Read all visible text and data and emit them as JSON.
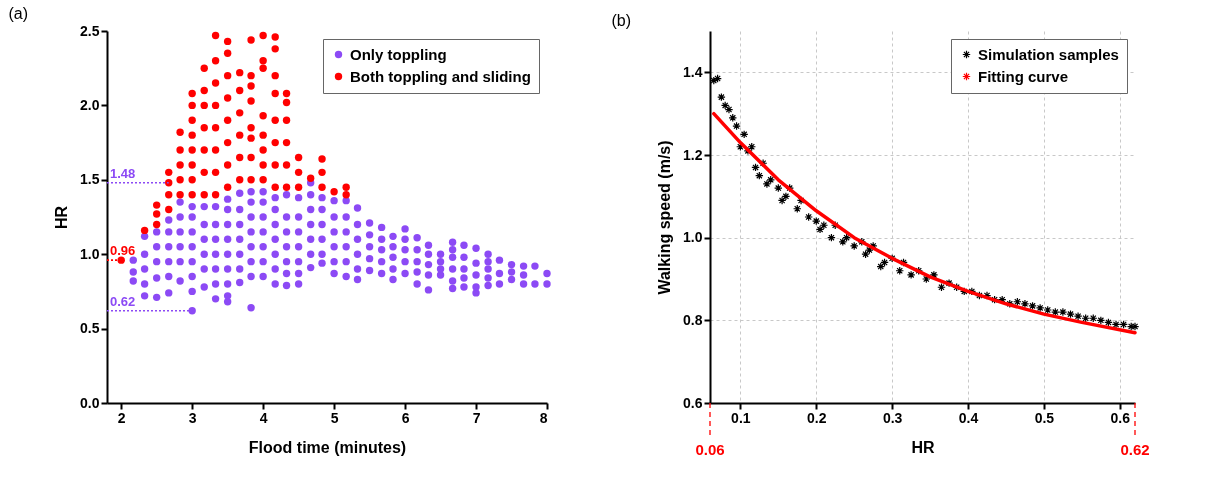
{
  "chart_data": [
    {
      "type": "scatter",
      "title": "(a)",
      "xlabel": "Flood time (minutes)",
      "ylabel": "HR",
      "xlim": [
        1.8,
        8
      ],
      "xticks": [
        2,
        3,
        4,
        5,
        6,
        7,
        8
      ],
      "ylim": [
        0,
        2.5
      ],
      "yticks": [
        {
          "value": 0,
          "label": "0.0"
        },
        {
          "value": 0.5,
          "label": "0.5"
        },
        {
          "value": 1,
          "label": "1.0"
        },
        {
          "value": 1.5,
          "label": "1.5"
        },
        {
          "value": 2,
          "label": "2.0"
        },
        {
          "value": 2.5,
          "label": "2.5"
        }
      ],
      "marker": "circle",
      "legend": "top right",
      "series": [
        {
          "name": "Only toppling",
          "color": "#8c4af5",
          "x": [
            2.17,
            2.17,
            2.17,
            2.33,
            2.33,
            2.33,
            2.33,
            2.33,
            2.5,
            2.5,
            2.5,
            2.5,
            2.5,
            2.67,
            2.67,
            2.67,
            2.67,
            2.67,
            2.67,
            2.83,
            2.83,
            2.83,
            2.83,
            2.83,
            2.83,
            3.0,
            3.0,
            3.0,
            3.0,
            3.0,
            3.0,
            3.0,
            3.0,
            3.17,
            3.17,
            3.17,
            3.17,
            3.17,
            3.17,
            3.33,
            3.33,
            3.33,
            3.33,
            3.33,
            3.33,
            3.33,
            3.5,
            3.5,
            3.5,
            3.5,
            3.5,
            3.5,
            3.5,
            3.5,
            3.5,
            3.67,
            3.67,
            3.67,
            3.67,
            3.67,
            3.67,
            3.67,
            3.83,
            3.83,
            3.83,
            3.83,
            3.83,
            3.83,
            3.83,
            3.83,
            4.0,
            4.0,
            4.0,
            4.0,
            4.0,
            4.0,
            4.0,
            4.17,
            4.17,
            4.17,
            4.17,
            4.17,
            4.17,
            4.17,
            4.33,
            4.33,
            4.33,
            4.33,
            4.33,
            4.33,
            4.33,
            4.5,
            4.5,
            4.5,
            4.5,
            4.5,
            4.5,
            4.5,
            4.67,
            4.67,
            4.67,
            4.67,
            4.67,
            4.67,
            4.67,
            4.83,
            4.83,
            4.83,
            4.83,
            4.83,
            4.83,
            5.0,
            5.0,
            5.0,
            5.0,
            5.0,
            5.0,
            5.17,
            5.17,
            5.17,
            5.17,
            5.17,
            5.17,
            5.33,
            5.33,
            5.33,
            5.33,
            5.33,
            5.33,
            5.5,
            5.5,
            5.5,
            5.5,
            5.5,
            5.67,
            5.67,
            5.67,
            5.67,
            5.67,
            5.83,
            5.83,
            5.83,
            5.83,
            5.83,
            6.0,
            6.0,
            6.0,
            6.0,
            6.0,
            6.17,
            6.17,
            6.17,
            6.17,
            6.17,
            6.33,
            6.33,
            6.33,
            6.33,
            6.33,
            6.5,
            6.5,
            6.5,
            6.5,
            6.67,
            6.67,
            6.67,
            6.67,
            6.67,
            6.67,
            6.83,
            6.83,
            6.83,
            6.83,
            6.83,
            7.0,
            7.0,
            7.0,
            7.0,
            7.0,
            7.17,
            7.17,
            7.17,
            7.17,
            7.17,
            7.33,
            7.33,
            7.33,
            7.5,
            7.5,
            7.5,
            7.67,
            7.67,
            7.67,
            7.83,
            7.83,
            8.0,
            8.0
          ],
          "values": [
            0.82,
            0.88,
            0.96,
            0.72,
            0.8,
            0.9,
            1.0,
            1.12,
            0.71,
            0.84,
            0.95,
            1.05,
            1.15,
            0.74,
            0.85,
            0.95,
            1.05,
            1.15,
            1.23,
            0.82,
            0.95,
            1.05,
            1.15,
            1.25,
            1.35,
            0.62,
            0.75,
            0.85,
            0.95,
            1.05,
            1.15,
            1.25,
            1.32,
            0.78,
            0.9,
            1.0,
            1.1,
            1.2,
            1.32,
            0.7,
            0.8,
            0.9,
            1.0,
            1.1,
            1.2,
            1.32,
            0.68,
            0.72,
            0.8,
            0.9,
            1.0,
            1.1,
            1.2,
            1.3,
            1.37,
            0.81,
            0.9,
            1.0,
            1.1,
            1.2,
            1.3,
            1.41,
            0.64,
            0.85,
            0.95,
            1.05,
            1.15,
            1.25,
            1.35,
            1.42,
            0.85,
            0.95,
            1.05,
            1.15,
            1.25,
            1.35,
            1.42,
            0.8,
            0.9,
            1.0,
            1.1,
            1.2,
            1.3,
            1.38,
            0.79,
            0.87,
            0.95,
            1.05,
            1.15,
            1.25,
            1.4,
            0.8,
            0.87,
            0.95,
            1.05,
            1.15,
            1.25,
            1.38,
            0.91,
            1.0,
            1.1,
            1.2,
            1.3,
            1.4,
            1.48,
            0.94,
            1.0,
            1.1,
            1.2,
            1.3,
            1.38,
            0.87,
            0.95,
            1.05,
            1.15,
            1.25,
            1.36,
            0.85,
            0.95,
            1.05,
            1.15,
            1.25,
            1.36,
            0.83,
            0.9,
            1.0,
            1.1,
            1.2,
            1.31,
            0.89,
            0.97,
            1.05,
            1.13,
            1.21,
            0.87,
            0.95,
            1.03,
            1.1,
            1.18,
            0.83,
            0.9,
            0.98,
            1.05,
            1.12,
            0.87,
            0.95,
            1.03,
            1.1,
            1.17,
            0.8,
            0.88,
            0.95,
            1.03,
            1.11,
            0.76,
            0.86,
            0.93,
            1.0,
            1.06,
            0.86,
            0.9,
            0.95,
            1.0,
            0.77,
            0.82,
            0.9,
            0.98,
            1.03,
            1.08,
            0.78,
            0.84,
            0.9,
            0.98,
            1.06,
            0.74,
            0.78,
            0.86,
            0.94,
            1.04,
            0.79,
            0.84,
            0.9,
            0.95,
            1.0,
            0.8,
            0.87,
            0.96,
            0.83,
            0.88,
            0.93,
            0.8,
            0.86,
            0.92,
            0.8,
            0.92,
            0.8,
            0.87
          ]
        },
        {
          "name": "Both toppling and sliding",
          "color": "#ff0000",
          "x": [
            2.0,
            2.33,
            2.5,
            2.5,
            2.5,
            2.67,
            2.67,
            2.67,
            2.67,
            2.83,
            2.83,
            2.83,
            2.83,
            2.83,
            3.0,
            3.0,
            3.0,
            3.0,
            3.0,
            3.0,
            3.0,
            3.0,
            3.17,
            3.17,
            3.17,
            3.17,
            3.17,
            3.17,
            3.17,
            3.33,
            3.33,
            3.33,
            3.33,
            3.33,
            3.33,
            3.33,
            3.33,
            3.5,
            3.5,
            3.5,
            3.5,
            3.5,
            3.5,
            3.5,
            3.5,
            3.67,
            3.67,
            3.67,
            3.67,
            3.67,
            3.67,
            3.83,
            3.83,
            3.83,
            3.83,
            3.83,
            3.83,
            3.83,
            3.83,
            4.0,
            4.0,
            4.0,
            4.0,
            4.0,
            4.0,
            4.0,
            4.0,
            4.17,
            4.17,
            4.17,
            4.17,
            4.17,
            4.17,
            4.17,
            4.17,
            4.33,
            4.33,
            4.33,
            4.33,
            4.33,
            4.33,
            4.5,
            4.5,
            4.5,
            4.67,
            4.83,
            4.83,
            4.83,
            5.0,
            5.17,
            5.17
          ],
          "values": [
            0.96,
            1.16,
            1.2,
            1.27,
            1.33,
            1.3,
            1.4,
            1.48,
            1.55,
            1.4,
            1.5,
            1.6,
            1.7,
            1.82,
            1.4,
            1.5,
            1.6,
            1.7,
            1.8,
            1.9,
            2.0,
            2.08,
            1.4,
            1.55,
            1.7,
            1.85,
            2.0,
            2.1,
            2.25,
            1.4,
            1.55,
            1.7,
            1.85,
            2.0,
            2.15,
            2.3,
            2.47,
            1.45,
            1.6,
            1.75,
            1.9,
            2.05,
            2.2,
            2.35,
            2.43,
            1.5,
            1.65,
            1.8,
            1.95,
            2.1,
            2.22,
            1.5,
            1.65,
            1.78,
            1.85,
            2.03,
            2.13,
            2.2,
            2.44,
            1.5,
            1.6,
            1.7,
            1.8,
            1.93,
            2.25,
            2.3,
            2.47,
            1.45,
            1.6,
            1.75,
            1.9,
            2.08,
            2.2,
            2.38,
            2.46,
            1.45,
            1.6,
            1.75,
            1.9,
            2.02,
            2.08,
            1.45,
            1.55,
            1.65,
            1.51,
            1.45,
            1.55,
            1.64,
            1.42,
            1.4,
            1.45
          ]
        }
      ],
      "ref_lines": [
        {
          "axis": "y",
          "value": 1.48,
          "label": "1.48",
          "color": "#8c4af5",
          "line_style": "dotted"
        },
        {
          "axis": "y",
          "value": 0.96,
          "label": "0.96",
          "color": "#ff0000",
          "line_style": "dotted"
        },
        {
          "axis": "y",
          "value": 0.62,
          "label": "0.62",
          "color": "#8c4af5",
          "line_style": "dotted"
        }
      ]
    },
    {
      "type": "scatter",
      "title": "(b)",
      "xlabel": "HR",
      "ylabel": "Walking speed (m/s)",
      "xlim": [
        0.06,
        0.62
      ],
      "xticks": [
        0.1,
        0.2,
        0.3,
        0.4,
        0.5,
        0.6
      ],
      "ylim": [
        0.6,
        1.5
      ],
      "yticks": [
        {
          "value": 0.6,
          "label": "0.6"
        },
        {
          "value": 0.8,
          "label": "0.8"
        },
        {
          "value": 1,
          "label": "1.0"
        },
        {
          "value": 1.2,
          "label": "1.2"
        },
        {
          "value": 1.4,
          "label": "1.4"
        }
      ],
      "grid": true,
      "legend": "top right",
      "series": [
        {
          "name": "Simulation samples",
          "color": "#000000",
          "marker": "cross",
          "x": [
            0.065,
            0.07,
            0.075,
            0.08,
            0.085,
            0.09,
            0.095,
            0.1,
            0.105,
            0.11,
            0.115,
            0.12,
            0.125,
            0.13,
            0.135,
            0.14,
            0.15,
            0.155,
            0.16,
            0.165,
            0.175,
            0.18,
            0.19,
            0.2,
            0.205,
            0.21,
            0.22,
            0.225,
            0.235,
            0.24,
            0.25,
            0.26,
            0.265,
            0.27,
            0.275,
            0.285,
            0.29,
            0.3,
            0.31,
            0.315,
            0.325,
            0.335,
            0.345,
            0.355,
            0.365,
            0.375,
            0.385,
            0.395,
            0.405,
            0.415,
            0.425,
            0.435,
            0.445,
            0.455,
            0.465,
            0.475,
            0.485,
            0.495,
            0.505,
            0.515,
            0.525,
            0.535,
            0.545,
            0.555,
            0.565,
            0.575,
            0.585,
            0.595,
            0.605,
            0.615,
            0.62
          ],
          "values": [
            1.38,
            1.385,
            1.34,
            1.32,
            1.31,
            1.29,
            1.27,
            1.22,
            1.25,
            1.21,
            1.22,
            1.17,
            1.15,
            1.18,
            1.13,
            1.14,
            1.12,
            1.09,
            1.1,
            1.12,
            1.07,
            1.09,
            1.05,
            1.04,
            1.02,
            1.03,
            1.0,
            1.03,
            0.99,
            1.0,
            0.98,
            0.99,
            0.96,
            0.97,
            0.98,
            0.93,
            0.94,
            0.95,
            0.92,
            0.94,
            0.91,
            0.92,
            0.9,
            0.91,
            0.88,
            0.89,
            0.88,
            0.87,
            0.87,
            0.86,
            0.86,
            0.85,
            0.85,
            0.84,
            0.845,
            0.84,
            0.835,
            0.83,
            0.825,
            0.82,
            0.82,
            0.815,
            0.81,
            0.805,
            0.805,
            0.8,
            0.795,
            0.79,
            0.79,
            0.785,
            0.785
          ]
        },
        {
          "name": "Fitting curve",
          "type": "line",
          "color": "#ff0000",
          "marker": "none",
          "line_style": "solid",
          "x": [
            0.065,
            0.1,
            0.15,
            0.2,
            0.25,
            0.3,
            0.35,
            0.4,
            0.45,
            0.5,
            0.55,
            0.62
          ],
          "values": [
            1.3,
            1.23,
            1.14,
            1.065,
            1.0,
            0.95,
            0.905,
            0.87,
            0.84,
            0.815,
            0.795,
            0.77
          ]
        }
      ],
      "ref_lines": [
        {
          "axis": "x",
          "value": 0.06,
          "label": "0.06",
          "color": "#ff0000",
          "line_style": "dashed"
        },
        {
          "axis": "x",
          "value": 0.62,
          "label": "0.62",
          "color": "#ff0000",
          "line_style": "dashed"
        }
      ]
    }
  ]
}
